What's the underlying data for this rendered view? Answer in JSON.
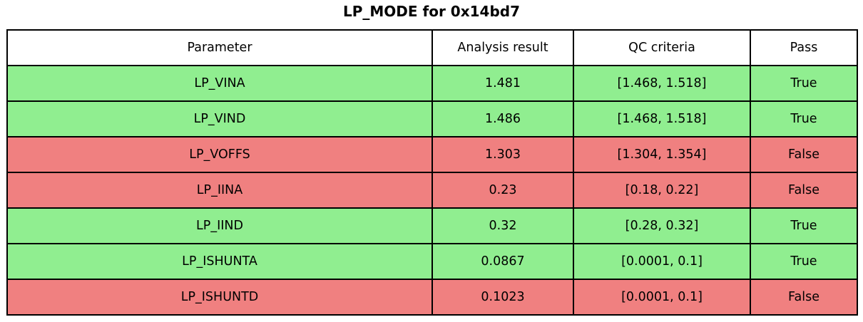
{
  "title": "LP_MODE for 0x14bd7",
  "colors": {
    "pass_row": "#90ee90",
    "fail_row": "#f08080",
    "header_bg": "#ffffff",
    "border": "#000000",
    "text": "#000000"
  },
  "chart_data": {
    "type": "table",
    "title": "LP_MODE for 0x14bd7",
    "columns": [
      "Parameter",
      "Analysis result",
      "QC criteria",
      "Pass"
    ],
    "rows": [
      [
        "LP_VINA",
        "1.481",
        "[1.468, 1.518]",
        "True"
      ],
      [
        "LP_VIND",
        "1.486",
        "[1.468, 1.518]",
        "True"
      ],
      [
        "LP_VOFFS",
        "1.303",
        "[1.304, 1.354]",
        "False"
      ],
      [
        "LP_IINA",
        "0.23",
        "[0.18, 0.22]",
        "False"
      ],
      [
        "LP_IIND",
        "0.32",
        "[0.28, 0.32]",
        "True"
      ],
      [
        "LP_ISHUNTA",
        "0.0867",
        "[0.0001, 0.1]",
        "True"
      ],
      [
        "LP_ISHUNTD",
        "0.1023",
        "[0.0001, 0.1]",
        "False"
      ]
    ],
    "row_colors": [
      "#90ee90",
      "#90ee90",
      "#f08080",
      "#f08080",
      "#90ee90",
      "#90ee90",
      "#f08080"
    ],
    "legend": "row background green = pass, red = fail",
    "grid": true
  }
}
